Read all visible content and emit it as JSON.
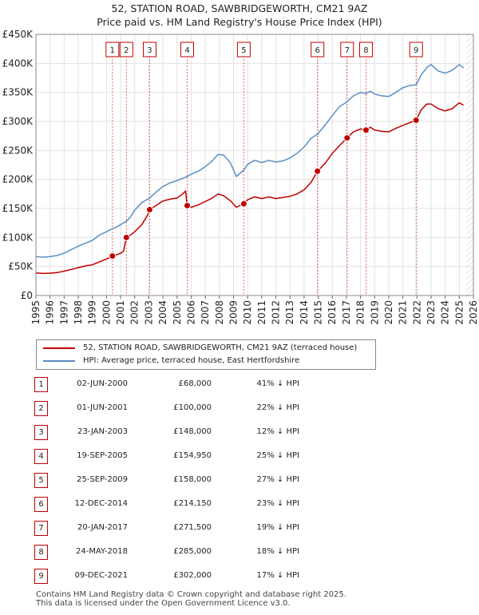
{
  "title_line1": "52, STATION ROAD, SAWBRIDGEWORTH, CM21 9AZ",
  "title_line2": "Price paid vs. HM Land Registry's House Price Index (HPI)",
  "chart_data": {
    "type": "line",
    "xlim": [
      1995,
      2026
    ],
    "ylim": [
      0,
      450000
    ],
    "x_ticks": [
      1995,
      1996,
      1997,
      1998,
      1999,
      2000,
      2001,
      2002,
      2003,
      2004,
      2005,
      2006,
      2007,
      2008,
      2009,
      2010,
      2011,
      2012,
      2013,
      2014,
      2015,
      2016,
      2017,
      2018,
      2019,
      2020,
      2021,
      2022,
      2023,
      2024,
      2025,
      2026
    ],
    "y_ticks": [
      {
        "value": 0,
        "label": "£0"
      },
      {
        "value": 50000,
        "label": "£50K"
      },
      {
        "value": 100000,
        "label": "£100K"
      },
      {
        "value": 150000,
        "label": "£150K"
      },
      {
        "value": 200000,
        "label": "£200K"
      },
      {
        "value": 250000,
        "label": "£250K"
      },
      {
        "value": 300000,
        "label": "£300K"
      },
      {
        "value": 350000,
        "label": "£350K"
      },
      {
        "value": 400000,
        "label": "£400K"
      },
      {
        "value": 450000,
        "label": "£450K"
      }
    ],
    "grid": true,
    "future_hatch_from": 2025.5,
    "series": [
      {
        "name": "52, STATION ROAD, SAWBRIDGEWORTH, CM21 9AZ (terraced house)",
        "color": "#c00000",
        "points": [
          [
            1995,
            39000
          ],
          [
            1995.5,
            38000
          ],
          [
            1996,
            38500
          ],
          [
            1996.5,
            39500
          ],
          [
            1997,
            42000
          ],
          [
            1997.5,
            45000
          ],
          [
            1998,
            48000
          ],
          [
            1998.5,
            51000
          ],
          [
            1999,
            53000
          ],
          [
            1999.5,
            58000
          ],
          [
            2000.2,
            65000
          ],
          [
            2000.42,
            68000
          ],
          [
            2000.7,
            70000
          ],
          [
            2001,
            73000
          ],
          [
            2001.2,
            76000
          ],
          [
            2001.41,
            100000
          ],
          [
            2001.7,
            104000
          ],
          [
            2002,
            110000
          ],
          [
            2002.5,
            122000
          ],
          [
            2002.9,
            138000
          ],
          [
            2003.06,
            148000
          ],
          [
            2003.5,
            155000
          ],
          [
            2004,
            163000
          ],
          [
            2004.5,
            166000
          ],
          [
            2005,
            168000
          ],
          [
            2005.4,
            175000
          ],
          [
            2005.6,
            180000
          ],
          [
            2005.72,
            154950
          ],
          [
            2006,
            152000
          ],
          [
            2006.5,
            156000
          ],
          [
            2007,
            162000
          ],
          [
            2007.5,
            168000
          ],
          [
            2007.9,
            175000
          ],
          [
            2008.3,
            172000
          ],
          [
            2008.8,
            163000
          ],
          [
            2009.2,
            152000
          ],
          [
            2009.73,
            158000
          ],
          [
            2010,
            165000
          ],
          [
            2010.5,
            170000
          ],
          [
            2011,
            167000
          ],
          [
            2011.5,
            170000
          ],
          [
            2012,
            167000
          ],
          [
            2012.5,
            169000
          ],
          [
            2013,
            171000
          ],
          [
            2013.5,
            175000
          ],
          [
            2014,
            182000
          ],
          [
            2014.5,
            195000
          ],
          [
            2014.95,
            214150
          ],
          [
            2015.5,
            228000
          ],
          [
            2016,
            245000
          ],
          [
            2016.5,
            258000
          ],
          [
            2017.05,
            271500
          ],
          [
            2017.5,
            282000
          ],
          [
            2018,
            287000
          ],
          [
            2018.39,
            285000
          ],
          [
            2018.7,
            290000
          ],
          [
            2019,
            285000
          ],
          [
            2019.5,
            283000
          ],
          [
            2020,
            282000
          ],
          [
            2020.5,
            288000
          ],
          [
            2021,
            293000
          ],
          [
            2021.5,
            298000
          ],
          [
            2021.94,
            302000
          ],
          [
            2022.3,
            320000
          ],
          [
            2022.7,
            330000
          ],
          [
            2023,
            330000
          ],
          [
            2023.5,
            322000
          ],
          [
            2024,
            318000
          ],
          [
            2024.5,
            322000
          ],
          [
            2025,
            332000
          ],
          [
            2025.3,
            328000
          ]
        ]
      },
      {
        "name": "HPI: Average price, terraced house, East Hertfordshire",
        "color": "#5b8ec4",
        "points": [
          [
            1995,
            67000
          ],
          [
            1995.5,
            66000
          ],
          [
            1996,
            67000
          ],
          [
            1996.5,
            69000
          ],
          [
            1997,
            73000
          ],
          [
            1997.5,
            79000
          ],
          [
            1998,
            85000
          ],
          [
            1998.5,
            90000
          ],
          [
            1999,
            95000
          ],
          [
            1999.5,
            104000
          ],
          [
            2000,
            110000
          ],
          [
            2000.42,
            115000
          ],
          [
            2000.7,
            118000
          ],
          [
            2001,
            122000
          ],
          [
            2001.41,
            128000
          ],
          [
            2001.7,
            135000
          ],
          [
            2002,
            147000
          ],
          [
            2002.5,
            160000
          ],
          [
            2003.06,
            168000
          ],
          [
            2003.5,
            178000
          ],
          [
            2004,
            188000
          ],
          [
            2004.5,
            194000
          ],
          [
            2005,
            198000
          ],
          [
            2005.72,
            205000
          ],
          [
            2006,
            209000
          ],
          [
            2006.5,
            214000
          ],
          [
            2007,
            222000
          ],
          [
            2007.5,
            232000
          ],
          [
            2007.9,
            243000
          ],
          [
            2008.3,
            242000
          ],
          [
            2008.8,
            228000
          ],
          [
            2009.2,
            205000
          ],
          [
            2009.73,
            216000
          ],
          [
            2010,
            226000
          ],
          [
            2010.5,
            233000
          ],
          [
            2011,
            229000
          ],
          [
            2011.5,
            233000
          ],
          [
            2012,
            230000
          ],
          [
            2012.5,
            232000
          ],
          [
            2013,
            237000
          ],
          [
            2013.5,
            245000
          ],
          [
            2014,
            256000
          ],
          [
            2014.5,
            271000
          ],
          [
            2014.95,
            278000
          ],
          [
            2015.5,
            294000
          ],
          [
            2016,
            310000
          ],
          [
            2016.5,
            325000
          ],
          [
            2017.05,
            334000
          ],
          [
            2017.5,
            344000
          ],
          [
            2018,
            350000
          ],
          [
            2018.39,
            348000
          ],
          [
            2018.7,
            352000
          ],
          [
            2019,
            347000
          ],
          [
            2019.5,
            344000
          ],
          [
            2020,
            343000
          ],
          [
            2020.5,
            350000
          ],
          [
            2021,
            358000
          ],
          [
            2021.5,
            362000
          ],
          [
            2021.94,
            363000
          ],
          [
            2022.3,
            380000
          ],
          [
            2022.7,
            393000
          ],
          [
            2023,
            398000
          ],
          [
            2023.5,
            387000
          ],
          [
            2024,
            383000
          ],
          [
            2024.5,
            388000
          ],
          [
            2025,
            398000
          ],
          [
            2025.3,
            392000
          ]
        ]
      }
    ],
    "sales": [
      {
        "num": "1",
        "x": 2000.42,
        "price": 68000,
        "date": "02-JUN-2000",
        "price_label": "£68,000",
        "hpi": "41% ↓ HPI"
      },
      {
        "num": "2",
        "x": 2001.41,
        "price": 100000,
        "date": "01-JUN-2001",
        "price_label": "£100,000",
        "hpi": "22% ↓ HPI"
      },
      {
        "num": "3",
        "x": 2003.06,
        "price": 148000,
        "date": "23-JAN-2003",
        "price_label": "£148,000",
        "hpi": "12% ↓ HPI"
      },
      {
        "num": "4",
        "x": 2005.72,
        "price": 154950,
        "date": "19-SEP-2005",
        "price_label": "£154,950",
        "hpi": "25% ↓ HPI"
      },
      {
        "num": "5",
        "x": 2009.73,
        "price": 158000,
        "date": "25-SEP-2009",
        "price_label": "£158,000",
        "hpi": "27% ↓ HPI"
      },
      {
        "num": "6",
        "x": 2014.95,
        "price": 214150,
        "date": "12-DEC-2014",
        "price_label": "£214,150",
        "hpi": "23% ↓ HPI"
      },
      {
        "num": "7",
        "x": 2017.05,
        "price": 271500,
        "date": "20-JAN-2017",
        "price_label": "£271,500",
        "hpi": "19% ↓ HPI"
      },
      {
        "num": "8",
        "x": 2018.39,
        "price": 285000,
        "date": "24-MAY-2018",
        "price_label": "£285,000",
        "hpi": "18% ↓ HPI"
      },
      {
        "num": "9",
        "x": 2021.94,
        "price": 302000,
        "date": "09-DEC-2021",
        "price_label": "£302,000",
        "hpi": "17% ↓ HPI"
      }
    ]
  },
  "legend": {
    "property_label": "52, STATION ROAD, SAWBRIDGEWORTH, CM21 9AZ (terraced house)",
    "property_color": "#c00000",
    "hpi_label": "HPI: Average price, terraced house, East Hertfordshire",
    "hpi_color": "#5b8ec4"
  },
  "footer_line1": "Contains HM Land Registry data © Crown copyright and database right 2025.",
  "footer_line2": "This data is licensed under the Open Government Licence v3.0."
}
